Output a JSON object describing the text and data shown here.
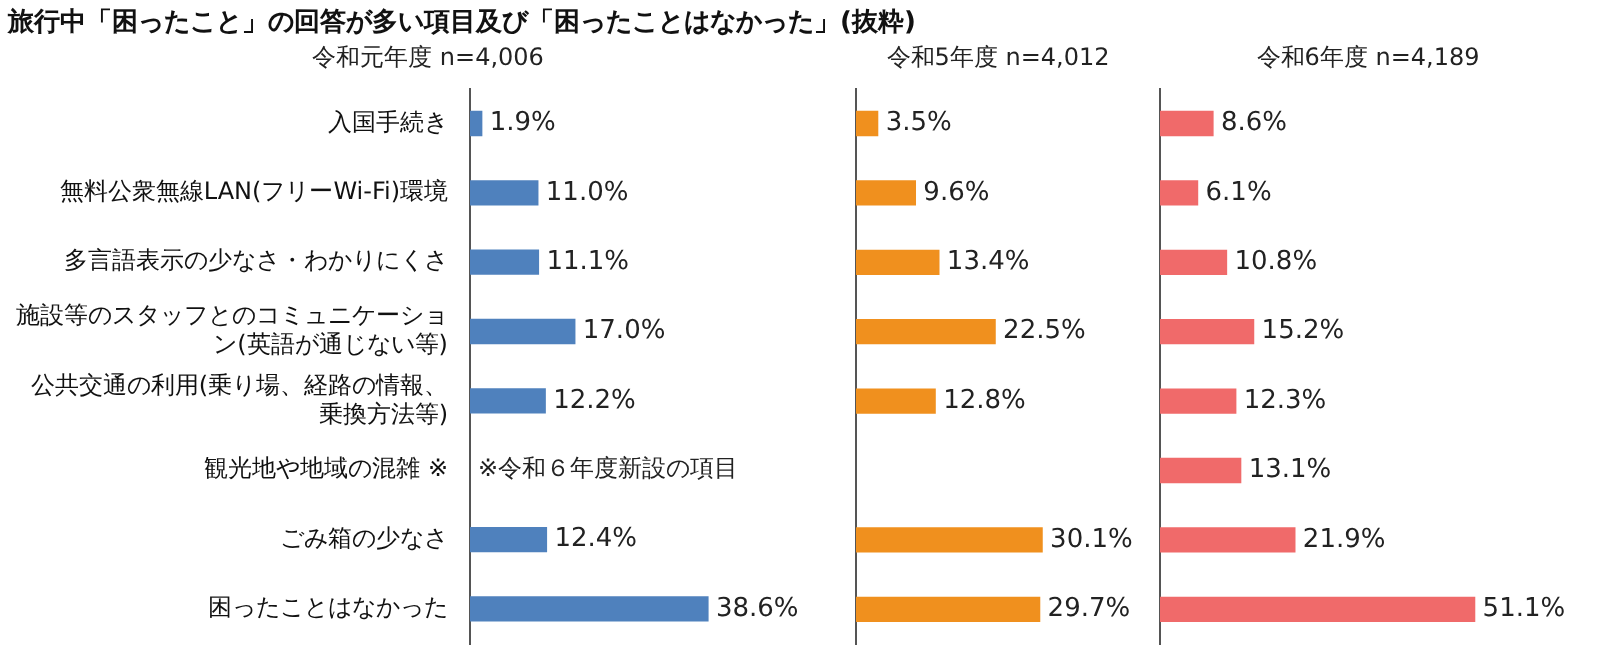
{
  "chart_data": [
    {
      "type": "bar",
      "orientation": "horizontal",
      "title": "旅行中「困ったこと」の回答が多い項目及び「困ったことはなかった」(抜粋)",
      "subtitle": "令和元年度 n=4,006",
      "categories": [
        "入国手続き",
        "無料公衆無線LAN(フリーWi-Fi)環境",
        "多言語表示の少なさ・わかりにくさ",
        "施設等のスタッフとのコミュニケーション(英語が通じない等)",
        "公共交通の利用(乗り場、経路の情報、乗換方法等)",
        "観光地や地域の混雑 ※",
        "ごみ箱の少なさ",
        "困ったことはなかった"
      ],
      "values": [
        1.9,
        11.0,
        11.1,
        17.0,
        12.2,
        null,
        12.4,
        38.6
      ],
      "color": "#4f81bd",
      "value_labels": [
        "1.9%",
        "11.0%",
        "11.1%",
        "17.0%",
        "12.2%",
        null,
        "12.4%",
        "38.6%"
      ],
      "annotations": [
        "※令和６年度新設の項目"
      ]
    },
    {
      "type": "bar",
      "orientation": "horizontal",
      "title": "令和5年度 n=4,012",
      "tick_labels": false,
      "values": [
        3.5,
        9.6,
        13.4,
        22.5,
        12.8,
        null,
        30.1,
        29.7
      ],
      "color": "#f0901e",
      "value_labels": [
        "3.5%",
        "9.6%",
        "13.4%",
        "22.5%",
        "12.8%",
        null,
        "30.1%",
        "29.7%"
      ]
    },
    {
      "type": "bar",
      "orientation": "horizontal",
      "title": "令和6年度 n=4,189",
      "tick_labels": false,
      "values": [
        8.6,
        6.1,
        10.8,
        15.2,
        12.3,
        13.1,
        21.9,
        51.1
      ],
      "color": "#f06a6a",
      "value_labels": [
        "8.6%",
        "6.1%",
        "10.8%",
        "15.2%",
        "12.3%",
        "13.1%",
        "21.9%",
        "51.1%"
      ]
    }
  ]
}
